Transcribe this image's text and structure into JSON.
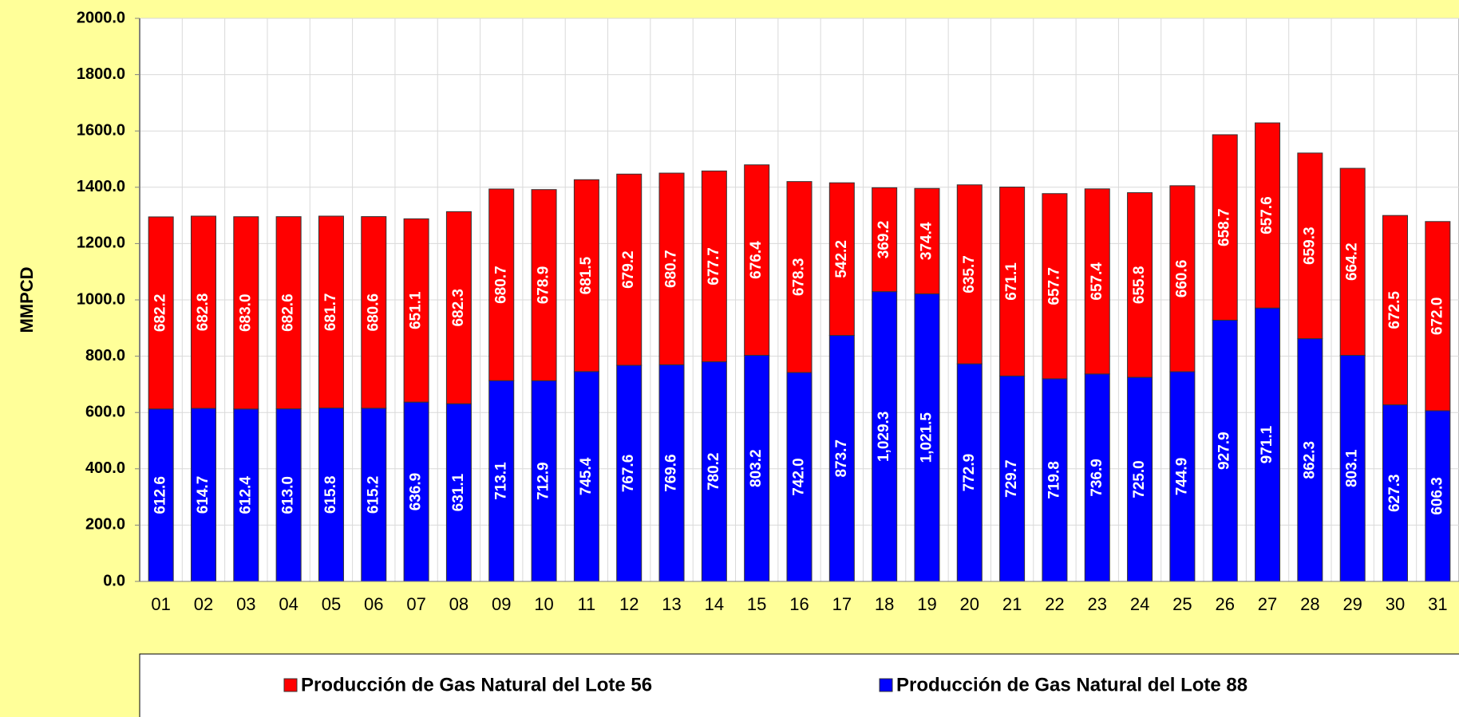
{
  "chart_data": {
    "type": "stacked_bar",
    "y_label": "MMPCD",
    "categories": [
      "01",
      "02",
      "03",
      "04",
      "05",
      "06",
      "07",
      "08",
      "09",
      "10",
      "11",
      "12",
      "13",
      "14",
      "15",
      "16",
      "17",
      "18",
      "19",
      "20",
      "21",
      "22",
      "23",
      "24",
      "25",
      "26",
      "27",
      "28",
      "29",
      "30",
      "31"
    ],
    "series": [
      {
        "name": "Producción de Gas Natural del Lote 56",
        "color": "#ff0000",
        "values": [
          682.2,
          682.8,
          683.0,
          682.6,
          681.7,
          680.6,
          651.1,
          682.3,
          680.7,
          678.9,
          681.5,
          679.2,
          680.7,
          677.7,
          676.4,
          678.3,
          542.2,
          369.2,
          374.4,
          635.7,
          671.1,
          657.7,
          657.4,
          655.8,
          660.6,
          658.7,
          657.6,
          659.3,
          664.2,
          672.5,
          672.0
        ],
        "value_labels": [
          "682.2",
          "682.8",
          "683.0",
          "682.6",
          "681.7",
          "680.6",
          "651.1",
          "682.3",
          "680.7",
          "678.9",
          "681.5",
          "679.2",
          "680.7",
          "677.7",
          "676.4",
          "678.3",
          "542.2",
          "369.2",
          "374.4",
          "635.7",
          "671.1",
          "657.7",
          "657.4",
          "655.8",
          "660.6",
          "658.7",
          "657.6",
          "659.3",
          "664.2",
          "672.5",
          "672.0"
        ]
      },
      {
        "name": "Producción de Gas Natural del Lote 88",
        "color": "#0000ff",
        "values": [
          612.6,
          614.7,
          612.4,
          613.0,
          615.8,
          615.2,
          636.9,
          631.1,
          713.1,
          712.9,
          745.4,
          767.6,
          769.6,
          780.2,
          803.2,
          742.0,
          873.7,
          1029.3,
          1021.5,
          772.9,
          729.7,
          719.8,
          736.9,
          725.0,
          744.9,
          927.9,
          971.1,
          862.3,
          803.1,
          627.3,
          606.3
        ],
        "value_labels": [
          "612.6",
          "614.7",
          "612.4",
          "613.0",
          "615.8",
          "615.2",
          "636.9",
          "631.1",
          "713.1",
          "712.9",
          "745.4",
          "767.6",
          "769.6",
          "780.2",
          "803.2",
          "742.0",
          "873.7",
          "1,029.3",
          "1,021.5",
          "772.9",
          "729.7",
          "719.8",
          "736.9",
          "725.0",
          "744.9",
          "927.9",
          "971.1",
          "862.3",
          "803.1",
          "627.3",
          "606.3"
        ]
      }
    ],
    "ylim": [
      0,
      2000
    ],
    "yticks": [
      {
        "value": 0,
        "label": "0.0"
      },
      {
        "value": 200,
        "label": "200.0"
      },
      {
        "value": 400,
        "label": "400.0"
      },
      {
        "value": 600,
        "label": "600.0"
      },
      {
        "value": 800,
        "label": "800.0"
      },
      {
        "value": 1000,
        "label": "1000.0"
      },
      {
        "value": 1200,
        "label": "1200.0"
      },
      {
        "value": 1400,
        "label": "1400.0"
      },
      {
        "value": 1600,
        "label": "1600.0"
      },
      {
        "value": 1800,
        "label": "1800.0"
      },
      {
        "value": 2000,
        "label": "2000.0"
      }
    ],
    "grid": true,
    "legend": "bottom"
  }
}
